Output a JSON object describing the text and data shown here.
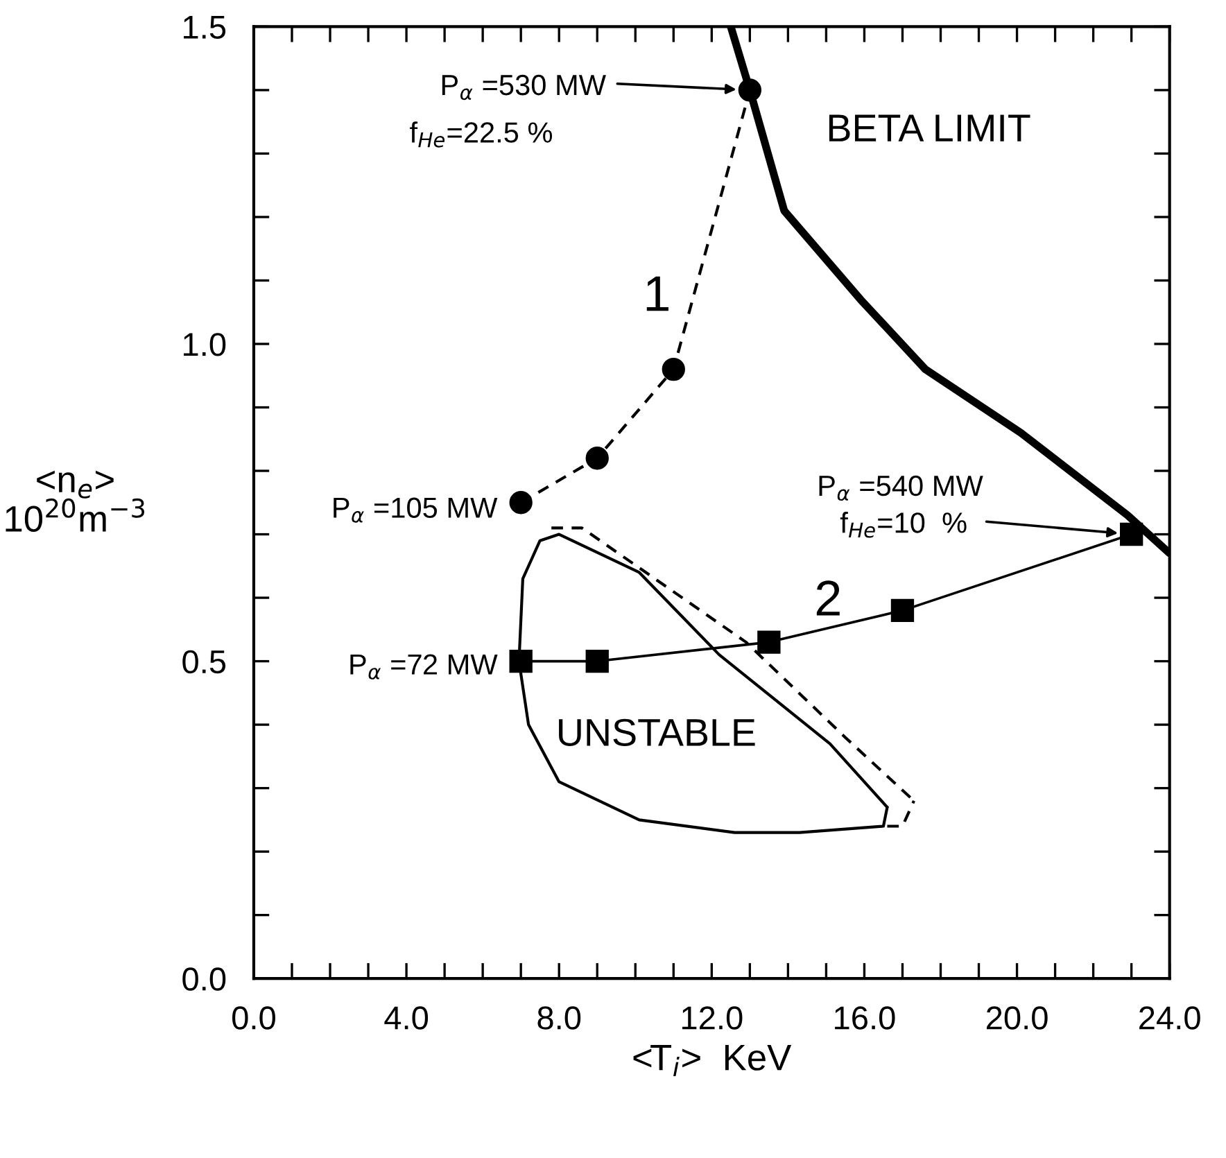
{
  "chart_data": {
    "type": "line",
    "xlabel": "<T$_{i}$>  KeV",
    "ylabel": "<n$_{e}$>\n10$^{20}$m$^{−3}$",
    "xlim": [
      0,
      24
    ],
    "ylim": [
      0,
      1.5
    ],
    "xticks": [
      {
        "value": 0,
        "label": "0.0"
      },
      {
        "value": 1,
        "label": null
      },
      {
        "value": 2,
        "label": null
      },
      {
        "value": 3,
        "label": null
      },
      {
        "value": 4,
        "label": "4.0"
      },
      {
        "value": 5,
        "label": null
      },
      {
        "value": 6,
        "label": null
      },
      {
        "value": 7,
        "label": null
      },
      {
        "value": 8,
        "label": "8.0"
      },
      {
        "value": 9,
        "label": null
      },
      {
        "value": 10,
        "label": null
      },
      {
        "value": 11,
        "label": null
      },
      {
        "value": 12,
        "label": "12.0"
      },
      {
        "value": 13,
        "label": null
      },
      {
        "value": 14,
        "label": null
      },
      {
        "value": 15,
        "label": null
      },
      {
        "value": 16,
        "label": "16.0"
      },
      {
        "value": 17,
        "label": null
      },
      {
        "value": 18,
        "label": null
      },
      {
        "value": 19,
        "label": null
      },
      {
        "value": 20,
        "label": "20.0"
      },
      {
        "value": 21,
        "label": null
      },
      {
        "value": 22,
        "label": null
      },
      {
        "value": 23,
        "label": null
      },
      {
        "value": 24,
        "label": "24.0"
      }
    ],
    "yticks": [
      {
        "value": 0,
        "label": "0.0"
      },
      {
        "value": 0.1,
        "label": null
      },
      {
        "value": 0.2,
        "label": null
      },
      {
        "value": 0.3,
        "label": null
      },
      {
        "value": 0.4,
        "label": null
      },
      {
        "value": 0.5,
        "label": "0.5"
      },
      {
        "value": 0.6,
        "label": null
      },
      {
        "value": 0.7,
        "label": null
      },
      {
        "value": 0.8,
        "label": null
      },
      {
        "value": 0.9,
        "label": null
      },
      {
        "value": 1.0,
        "label": "1.0"
      },
      {
        "value": 1.1,
        "label": null
      },
      {
        "value": 1.2,
        "label": null
      },
      {
        "value": 1.3,
        "label": null
      },
      {
        "value": 1.4,
        "label": null
      },
      {
        "value": 1.5,
        "label": "1.5"
      }
    ],
    "grid": false,
    "legend": false,
    "series": [
      {
        "name": "1",
        "color": "#000000",
        "marker": "circle",
        "line_style": "dashed",
        "x": [
          7,
          9,
          11,
          13
        ],
        "values": [
          0.75,
          0.82,
          0.96,
          1.4
        ]
      },
      {
        "name": "2",
        "color": "#000000",
        "marker": "square",
        "line_style": "solid",
        "x": [
          7,
          9,
          13.5,
          17,
          23
        ],
        "values": [
          0.5,
          0.5,
          0.53,
          0.58,
          0.7
        ]
      },
      {
        "color": "#000000",
        "marker": "none",
        "line_style": "solid",
        "x": [
          12.5,
          13.0,
          13.9,
          15.9,
          17.6,
          20.1,
          22.9,
          24.0
        ],
        "values": [
          1.5,
          1.4,
          1.21,
          1.07,
          0.96,
          0.86,
          0.73,
          0.67
        ]
      },
      {
        "color": "#000000",
        "marker": "none",
        "line_style": "solid",
        "x": [
          6.95,
          7.05,
          7.5,
          8.0,
          10.1,
          12.2,
          15.1,
          16.6
        ],
        "values": [
          0.5,
          0.63,
          0.69,
          0.7,
          0.64,
          0.51,
          0.37,
          0.27
        ]
      },
      {
        "color": "#000000",
        "marker": "none",
        "line_style": "solid",
        "x": [
          6.95,
          7.2,
          8.0,
          10.1,
          12.6,
          14.3,
          16.5,
          16.6
        ],
        "values": [
          0.5,
          0.4,
          0.31,
          0.25,
          0.23,
          0.23,
          0.24,
          0.27
        ]
      },
      {
        "color": "#000000",
        "marker": "none",
        "line_style": "dashed",
        "x": [
          7.8,
          8.6,
          12.9,
          15.5,
          17.3
        ],
        "values": [
          0.71,
          0.71,
          0.53,
          0.38,
          0.28
        ]
      },
      {
        "color": "#000000",
        "marker": "none",
        "line_style": "dashed",
        "x": [
          16.6,
          17.0,
          17.3
        ],
        "values": [
          0.24,
          0.24,
          0.28
        ]
      }
    ],
    "annotations": [
      "P$_{α}$ =530 MW",
      "f$_{He}$=22.5 %",
      "P$_{α}$ =540 MW",
      "f$_{He}$=10  %",
      {
        "text": "P$_{α}$ =105 MW",
        "x": 7,
        "y": 0.75
      },
      {
        "text": "P$_{α}$ =72 MW",
        "x": 7,
        "y": 0.5
      },
      "BETA LIMIT",
      "UNSTABLE"
    ]
  }
}
